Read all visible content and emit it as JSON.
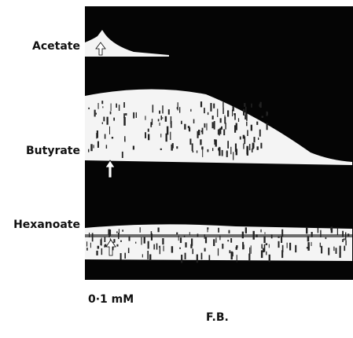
{
  "traces": [
    {
      "label": "Acetate"
    },
    {
      "label": "Butyrate"
    },
    {
      "label": "Hexanoate"
    }
  ],
  "scale_label": "0·1 mM",
  "caption": "F.B."
}
